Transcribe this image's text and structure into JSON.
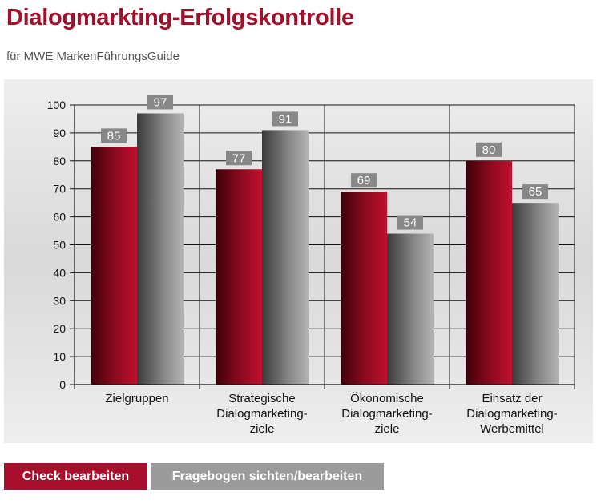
{
  "page": {
    "title": "Dialogmarkting-Erfolgskontrolle",
    "subtitle": "für MWE MarkenFührungsGuide"
  },
  "buttons": {
    "check_label": "Check bearbeiten",
    "fragebogen_label": "Fragebogen sichten/bearbeiten"
  },
  "colors": {
    "title": "#a0102a",
    "series_red": "#b0102c",
    "series_gray": "#8a8a8a",
    "button_primary": "#a70f2c",
    "button_secondary": "#9b9b9b"
  },
  "chart_data": {
    "type": "bar",
    "title": "",
    "xlabel": "",
    "ylabel": "",
    "ylim": [
      0,
      100
    ],
    "yticks": [
      0,
      10,
      20,
      30,
      40,
      50,
      60,
      70,
      80,
      90,
      100
    ],
    "grid": true,
    "legend": "none",
    "categories": [
      [
        "Zielgruppen"
      ],
      [
        "Strategische",
        "Dialogmarketing-",
        "ziele"
      ],
      [
        "Ökonomische",
        "Dialogmarketing-",
        "ziele"
      ],
      [
        "Einsatz der",
        "Dialogmarketing-",
        "Werbemittel"
      ]
    ],
    "series": [
      {
        "color": "red",
        "values": [
          85,
          77,
          69,
          80
        ]
      },
      {
        "color": "gray",
        "values": [
          97,
          91,
          54,
          65
        ]
      }
    ]
  }
}
